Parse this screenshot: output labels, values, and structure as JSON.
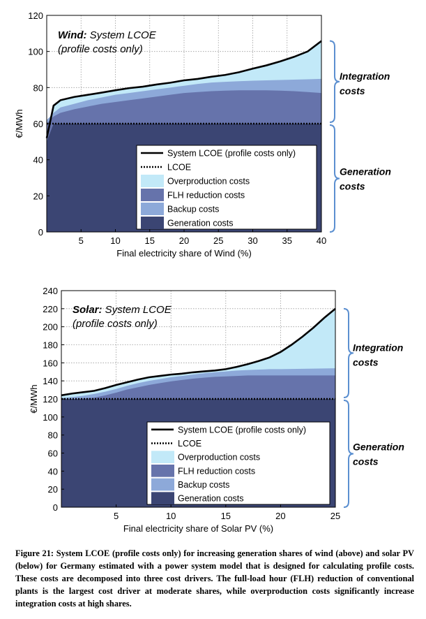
{
  "colors": {
    "generation": "#3b4573",
    "flh": "#6673ab",
    "backup": "#8da9d9",
    "overproduction": "#c2e9f8",
    "brace": "#5b8fd0",
    "lcoe_line": "#000000"
  },
  "legend_labels": [
    "System LCOE (profile costs only)",
    "LCOE",
    "Overproduction costs",
    "FLH reduction costs",
    "Backup costs",
    "Generation costs"
  ],
  "chart_data": [
    {
      "id": "wind",
      "type": "area",
      "title_bold": "Wind:",
      "title_rest": " System LCOE",
      "title_line2": "(profile costs only)",
      "xlabel": "Final electricity share of Wind (%)",
      "ylabel": "€/MWh",
      "xlim": [
        0,
        40
      ],
      "ylim": [
        0,
        120
      ],
      "xticks": [
        5,
        10,
        15,
        20,
        25,
        30,
        35,
        40
      ],
      "yticks": [
        0,
        20,
        40,
        60,
        80,
        100,
        120
      ],
      "lcoe": 60,
      "brace_labels": {
        "upper": [
          "Integration",
          "costs"
        ],
        "lower": [
          "Generation",
          "costs"
        ]
      },
      "series": {
        "x": [
          0,
          1,
          2,
          4,
          6,
          8,
          10,
          12,
          14,
          16,
          18,
          20,
          22,
          24,
          26,
          28,
          30,
          32,
          34,
          36,
          38,
          40
        ],
        "generation": [
          50,
          60,
          60,
          60,
          60,
          60,
          60,
          60,
          60,
          60,
          60,
          60,
          60,
          60,
          60,
          60,
          60,
          60,
          60,
          60,
          60,
          60
        ],
        "flh": [
          60,
          64,
          66,
          68,
          69.5,
          71,
          72,
          73,
          74,
          75,
          76,
          77,
          77.5,
          78,
          78.3,
          78.5,
          78.5,
          78.5,
          78.3,
          78,
          77.5,
          77
        ],
        "backup": [
          62,
          66,
          69,
          71,
          73,
          74.5,
          76,
          77,
          78,
          79,
          80,
          81,
          82,
          82.8,
          83.2,
          83.5,
          83.8,
          84,
          84.2,
          84.4,
          84.6,
          84.8
        ],
        "system_lcoe": [
          52,
          70,
          73,
          74.8,
          76,
          77.2,
          78.5,
          79.7,
          80.5,
          81.7,
          82.7,
          84,
          84.8,
          86,
          87,
          88.5,
          90.5,
          92.3,
          94.5,
          97,
          100,
          105.8
        ]
      }
    },
    {
      "id": "solar",
      "type": "area",
      "title_bold": "Solar:",
      "title_rest": " System LCOE",
      "title_line2": "(profile costs only)",
      "xlabel": "Final electricity share of Solar PV (%)",
      "ylabel": "€/MWh",
      "xlim": [
        0,
        25
      ],
      "ylim": [
        0,
        240
      ],
      "xticks": [
        5,
        10,
        15,
        20,
        25
      ],
      "yticks": [
        0,
        20,
        40,
        60,
        80,
        100,
        120,
        140,
        160,
        180,
        200,
        220,
        240
      ],
      "lcoe": 120,
      "brace_labels": {
        "upper": [
          "Integration",
          "costs"
        ],
        "lower": [
          "Generation",
          "costs"
        ]
      },
      "series": {
        "x": [
          0,
          1,
          2,
          3,
          4,
          5,
          6,
          7,
          8,
          9,
          10,
          11,
          12,
          13,
          14,
          15,
          16,
          17,
          18,
          19,
          20,
          21,
          22,
          23,
          24,
          25
        ],
        "generation": [
          120,
          120,
          120,
          120,
          120,
          120,
          120,
          120,
          120,
          120,
          120,
          120,
          120,
          120,
          120,
          120,
          120,
          120,
          120,
          120,
          120,
          120,
          120,
          120,
          120,
          120
        ],
        "flh": [
          120,
          120,
          120.5,
          121.5,
          124,
          127,
          130.5,
          133,
          135.5,
          137.5,
          139.5,
          141,
          142.5,
          143.5,
          144.5,
          145,
          145.5,
          146,
          146,
          146,
          146,
          146,
          146,
          146,
          146,
          146
        ],
        "backup": [
          121,
          122,
          123.5,
          125.5,
          128,
          131,
          134.5,
          137.5,
          140,
          142,
          144,
          145.5,
          147,
          148.5,
          149.5,
          150.5,
          151.5,
          152,
          152.5,
          153,
          153,
          153.2,
          153.4,
          153.6,
          153.8,
          154
        ],
        "system_lcoe": [
          124,
          126,
          127.5,
          129,
          132,
          135.5,
          138.5,
          141.5,
          144,
          145.5,
          147,
          148,
          149.5,
          150.5,
          151.5,
          153,
          155.5,
          158.5,
          162,
          166,
          172,
          180,
          189,
          199,
          210,
          220
        ]
      }
    }
  ],
  "caption": {
    "label": "Figure 21:",
    "text": " System LCOE (profile costs only) for increasing generation shares of wind (above) and solar PV (below) for Germany estimated with a power system model that is designed for calculating profile costs. These costs are decomposed into three cost drivers. The full-load hour (FLH) reduction of conventional plants is the largest cost driver at moderate shares, while overproduction costs significantly increase integration costs at high shares."
  }
}
